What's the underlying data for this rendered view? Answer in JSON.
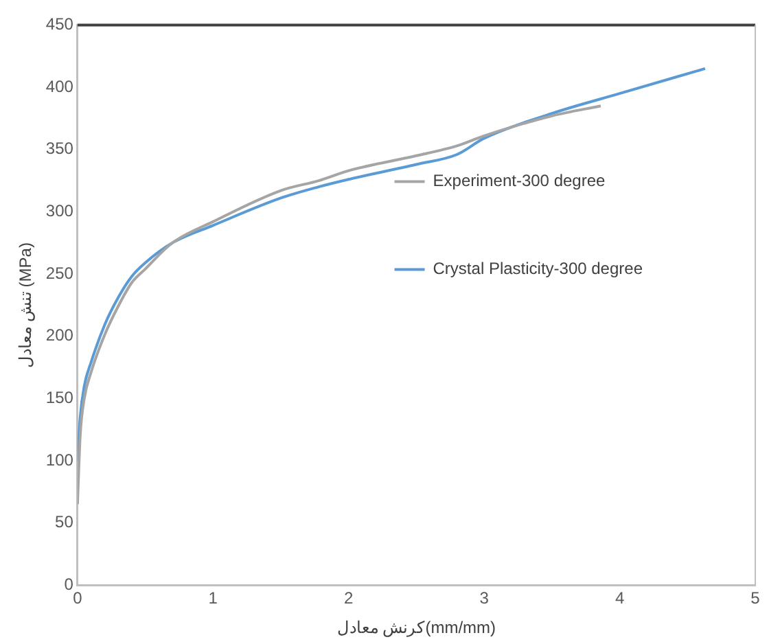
{
  "chart_data": {
    "type": "line",
    "xlabel": "کرنش معادل(mm/mm)",
    "ylabel": "تنش معادل (MPa)",
    "xlim": [
      0,
      5
    ],
    "xticks": [
      0,
      1,
      2,
      3,
      4,
      5
    ],
    "ylim": [
      0,
      450
    ],
    "yticks": [
      0,
      50,
      100,
      150,
      200,
      250,
      300,
      350,
      400,
      450
    ],
    "grid": false,
    "legend": "right",
    "marker": "none",
    "line_style": "solid",
    "series": [
      {
        "name": "Experiment-300 degree",
        "color": "#a5a5a5",
        "x": [
          0,
          0.02,
          0.05,
          0.1,
          0.2,
          0.3,
          0.4,
          0.5,
          0.7,
          1.0,
          1.5,
          1.78,
          2.0,
          2.5,
          2.8,
          3.0,
          3.5,
          3.86
        ],
        "values": [
          65,
          120,
          150,
          171,
          201,
          224,
          243,
          254,
          275,
          292,
          317,
          325,
          333,
          345,
          353,
          361,
          377,
          385
        ]
      },
      {
        "name": "Crystal Plasticity-300 degree",
        "color": "#5b9bd5",
        "x": [
          0,
          0.02,
          0.05,
          0.1,
          0.2,
          0.3,
          0.4,
          0.5,
          0.7,
          1.0,
          1.5,
          1.78,
          2.0,
          2.5,
          2.8,
          3.0,
          3.5,
          4.0,
          4.63
        ],
        "values": [
          99,
          135,
          160,
          179,
          209,
          231,
          248,
          259,
          275,
          289,
          311,
          320,
          326,
          338,
          346,
          359,
          379,
          395,
          415
        ]
      }
    ]
  }
}
